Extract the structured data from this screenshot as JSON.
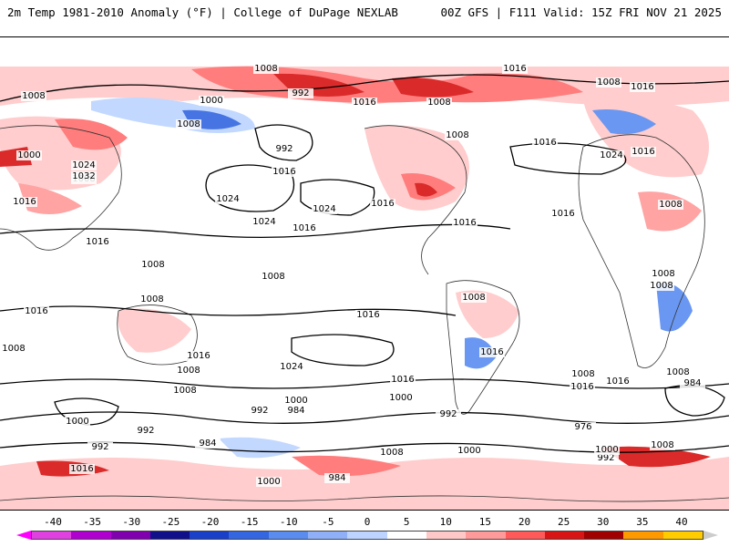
{
  "header": {
    "title_left": "2m Temp 1981-2010 Anomaly (°F) | College of DuPage NEXLAB",
    "title_right": "00Z GFS | F111 Valid: 15Z FRI NOV 21 2025"
  },
  "colors": {
    "land_line": "#333333",
    "isobar": "#000000",
    "warm_light": "#ffc8c8",
    "warm_mid": "#ff7070",
    "warm_strong": "#d81414",
    "warm_extreme": "#ff9900",
    "cold_light": "#bcd4ff",
    "cold_mid": "#5a8cf0",
    "cold_strong": "#1a3fc8"
  },
  "isobar_labels": [
    "1008",
    "1016",
    "1008",
    "992",
    "1000",
    "1016",
    "1008",
    "1016",
    "1008",
    "1008",
    "1024",
    "1000",
    "1008",
    "1032",
    "1024",
    "1016",
    "992",
    "1008",
    "1016",
    "1016",
    "1016",
    "1024",
    "1024",
    "1016",
    "1016",
    "1016",
    "1008",
    "1024",
    "1016",
    "1016",
    "1008",
    "1008",
    "1008",
    "1008",
    "1008",
    "1016",
    "1016",
    "1016",
    "1016",
    "1008",
    "1008",
    "1016",
    "1008",
    "1024",
    "1016",
    "1008",
    "1016",
    "1008",
    "1000",
    "992",
    "984",
    "1000",
    "1000",
    "992",
    "984",
    "976",
    "992",
    "984",
    "1008",
    "992",
    "984",
    "1008",
    "1000",
    "1016",
    "1000",
    "992",
    "1000",
    "1008"
  ],
  "legend": {
    "ticks": [
      "-40",
      "-35",
      "-30",
      "-25",
      "-20",
      "-15",
      "-10",
      "-5",
      "0",
      "5",
      "10",
      "15",
      "20",
      "25",
      "30",
      "35",
      "40"
    ],
    "colors": [
      "#e040e0",
      "#b000d0",
      "#8000b0",
      "#10108a",
      "#1a3fc8",
      "#3366e0",
      "#5a8cf0",
      "#8fb0f8",
      "#bcd4ff",
      "#ffffff",
      "#ffc8c8",
      "#ff9a9a",
      "#ff5a5a",
      "#d81414",
      "#a00000",
      "#ff9900",
      "#ffcc00"
    ]
  }
}
